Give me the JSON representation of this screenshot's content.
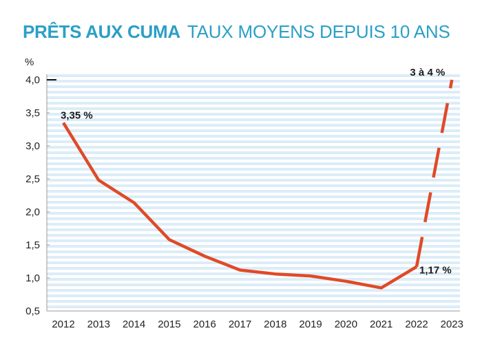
{
  "header": {
    "title_main": "PRÊTS AUX CUMA",
    "title_sub": "TAUX MOYENS DEPUIS 10 ANS"
  },
  "colors": {
    "title": "#2b9fc6",
    "line": "#e04a27",
    "grid": "#dcedf8"
  },
  "chart_data": {
    "type": "line",
    "title": "PRÊTS AUX CUMA TAUX MOYENS DEPUIS 10 ANS",
    "ylabel": "%",
    "xlabel": "",
    "ylim": [
      0.5,
      4.0
    ],
    "y_ticks": [
      "0,5",
      "1,0",
      "1,5",
      "2,0",
      "2,5",
      "3,0",
      "3,5",
      "4,0"
    ],
    "categories": [
      "2012",
      "2013",
      "2014",
      "2015",
      "2016",
      "2017",
      "2018",
      "2019",
      "2020",
      "2021",
      "2022",
      "2023"
    ],
    "series": [
      {
        "name": "",
        "style": "solid",
        "x": [
          "2012",
          "2013",
          "2014",
          "2015",
          "2016",
          "2017",
          "2018",
          "2019",
          "2020",
          "2021",
          "2022"
        ],
        "values": [
          3.35,
          2.48,
          2.14,
          1.58,
          1.33,
          1.12,
          1.06,
          1.03,
          0.95,
          0.85,
          1.17
        ]
      },
      {
        "name": "",
        "style": "dashed",
        "x": [
          "2022",
          "2023"
        ],
        "values": [
          1.17,
          4.0
        ]
      }
    ],
    "annotations": [
      {
        "text": "3,35 %",
        "x": "2012",
        "y": 3.35
      },
      {
        "text": "1,17 %",
        "x": "2022",
        "y": 1.17
      },
      {
        "text": "3 à 4 %",
        "x": "2023",
        "y": 4.0
      }
    ],
    "grid": true
  }
}
